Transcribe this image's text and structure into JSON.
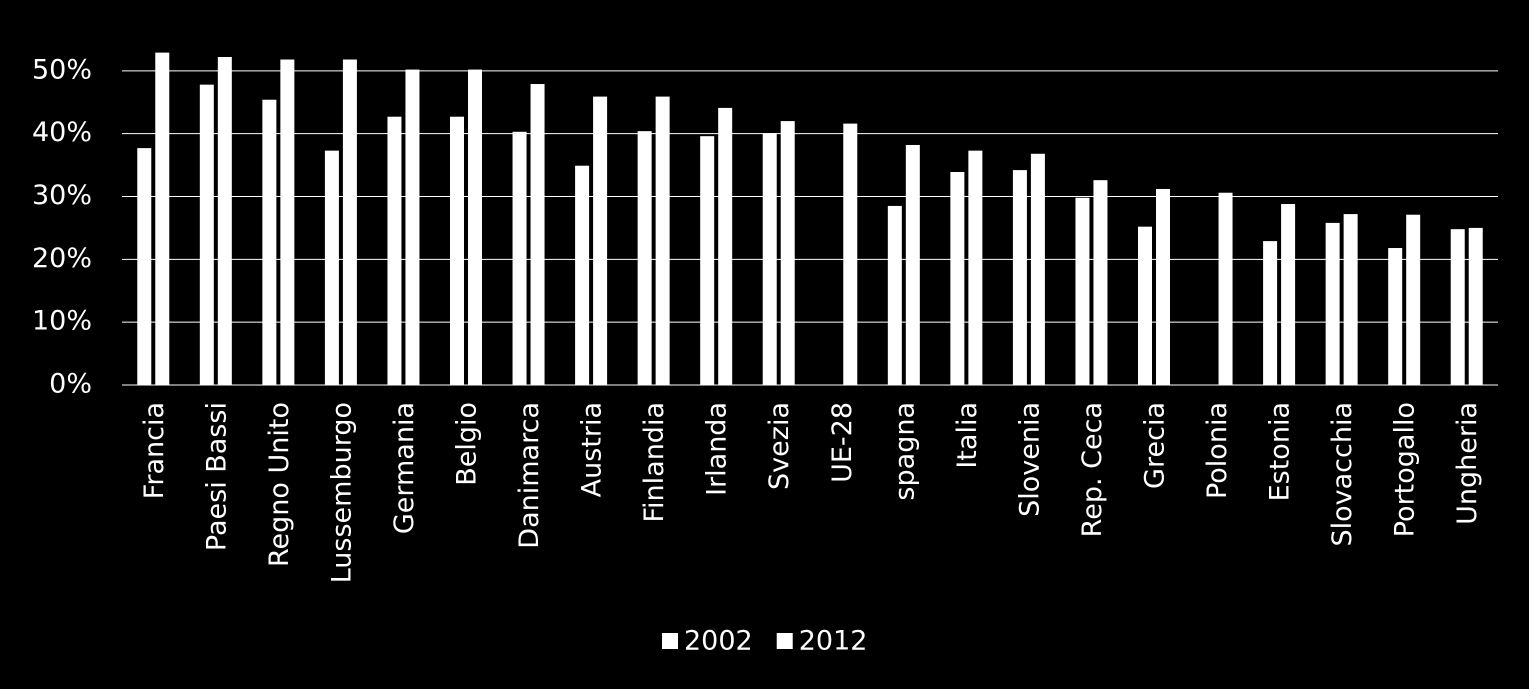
{
  "chart_data": {
    "type": "bar",
    "categories": [
      "Francia",
      "Paesi Bassi",
      "Regno Unito",
      "Lussemburgo",
      "Germania",
      "Belgio",
      "Danimarca",
      "Austria",
      "Finlandia",
      "Irlanda",
      "Svezia",
      "UE-28",
      "spagna",
      "Italia",
      "Slovenia",
      "Rep. Ceca",
      "Grecia",
      "Polonia",
      "Estonia",
      "Slovacchia",
      "Portogallo",
      "Ungheria"
    ],
    "series": [
      {
        "name": "2002",
        "color": "#ffffff",
        "values": [
          37.7,
          47.8,
          45.4,
          37.3,
          42.7,
          42.7,
          40.3,
          34.9,
          40.4,
          39.6,
          40.1,
          null,
          28.5,
          33.9,
          34.2,
          29.8,
          25.2,
          null,
          22.9,
          25.8,
          21.8,
          24.8
        ]
      },
      {
        "name": "2012",
        "color": "#ffffff",
        "values": [
          52.9,
          52.2,
          51.8,
          51.8,
          50.2,
          50.2,
          47.9,
          45.9,
          45.9,
          44.1,
          42.0,
          41.6,
          38.2,
          37.3,
          36.8,
          32.6,
          31.2,
          30.6,
          28.8,
          27.2,
          27.1,
          25.0
        ]
      }
    ],
    "ylim": [
      0,
      60
    ],
    "yticks": [
      {
        "value": 0,
        "label": "0%"
      },
      {
        "value": 10,
        "label": "10%"
      },
      {
        "value": 20,
        "label": "20%"
      },
      {
        "value": 30,
        "label": "30%"
      },
      {
        "value": 40,
        "label": "40%"
      },
      {
        "value": 50,
        "label": "50%"
      }
    ],
    "grid": true,
    "legend": "bottom"
  }
}
